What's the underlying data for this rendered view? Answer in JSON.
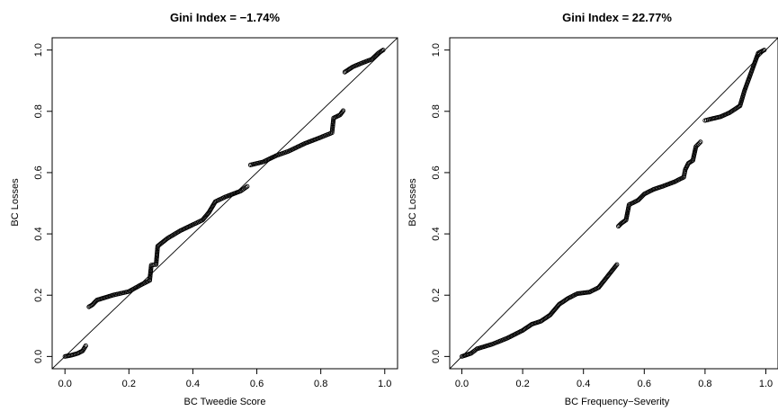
{
  "chart_data": [
    {
      "type": "scatter",
      "title": "Gini Index = −1.74%",
      "xlabel": "BC Tweedie Score",
      "ylabel": "BC Losses",
      "xlim": [
        0,
        1
      ],
      "ylim": [
        0,
        1
      ],
      "xticks": [
        "0.0",
        "0.2",
        "0.4",
        "0.6",
        "0.8",
        "1.0"
      ],
      "yticks": [
        "0.0",
        "0.2",
        "0.4",
        "0.6",
        "0.8",
        "1.0"
      ],
      "reference_line": "y = x",
      "grid": false,
      "segments": [
        [
          0.0,
          0.0
        ],
        [
          0.02,
          0.004
        ],
        [
          0.04,
          0.01
        ],
        [
          0.055,
          0.018
        ],
        [
          0.065,
          0.035
        ],
        [
          0.075,
          0.162
        ],
        [
          0.085,
          0.168
        ],
        [
          0.1,
          0.184
        ],
        [
          0.15,
          0.2
        ],
        [
          0.2,
          0.212
        ],
        [
          0.24,
          0.235
        ],
        [
          0.265,
          0.248
        ],
        [
          0.27,
          0.298
        ],
        [
          0.285,
          0.3
        ],
        [
          0.29,
          0.36
        ],
        [
          0.32,
          0.385
        ],
        [
          0.36,
          0.41
        ],
        [
          0.4,
          0.43
        ],
        [
          0.43,
          0.445
        ],
        [
          0.45,
          0.47
        ],
        [
          0.47,
          0.505
        ],
        [
          0.5,
          0.52
        ],
        [
          0.55,
          0.54
        ],
        [
          0.57,
          0.555
        ],
        [
          0.58,
          0.625
        ],
        [
          0.62,
          0.635
        ],
        [
          0.66,
          0.655
        ],
        [
          0.7,
          0.67
        ],
        [
          0.75,
          0.695
        ],
        [
          0.8,
          0.715
        ],
        [
          0.835,
          0.73
        ],
        [
          0.84,
          0.778
        ],
        [
          0.86,
          0.788
        ],
        [
          0.87,
          0.802
        ],
        [
          0.875,
          0.928
        ],
        [
          0.9,
          0.945
        ],
        [
          0.93,
          0.958
        ],
        [
          0.96,
          0.97
        ],
        [
          0.98,
          0.99
        ],
        [
          0.995,
          1.0
        ]
      ]
    },
    {
      "type": "scatter",
      "title": "Gini Index = 22.77%",
      "xlabel": "BC Frequency−Severity",
      "ylabel": "BC Losses",
      "xlim": [
        0,
        1
      ],
      "ylim": [
        0,
        1
      ],
      "xticks": [
        "0.0",
        "0.2",
        "0.4",
        "0.6",
        "0.8",
        "1.0"
      ],
      "yticks": [
        "0.0",
        "0.2",
        "0.4",
        "0.6",
        "0.8",
        "1.0"
      ],
      "reference_line": "y = x",
      "grid": false,
      "segments": [
        [
          0.0,
          0.0
        ],
        [
          0.03,
          0.01
        ],
        [
          0.05,
          0.025
        ],
        [
          0.1,
          0.04
        ],
        [
          0.15,
          0.06
        ],
        [
          0.2,
          0.085
        ],
        [
          0.23,
          0.105
        ],
        [
          0.26,
          0.115
        ],
        [
          0.29,
          0.135
        ],
        [
          0.32,
          0.17
        ],
        [
          0.35,
          0.19
        ],
        [
          0.38,
          0.205
        ],
        [
          0.42,
          0.21
        ],
        [
          0.45,
          0.225
        ],
        [
          0.47,
          0.25
        ],
        [
          0.49,
          0.275
        ],
        [
          0.51,
          0.3
        ],
        [
          0.515,
          0.425
        ],
        [
          0.525,
          0.435
        ],
        [
          0.54,
          0.445
        ],
        [
          0.55,
          0.495
        ],
        [
          0.58,
          0.51
        ],
        [
          0.6,
          0.53
        ],
        [
          0.63,
          0.545
        ],
        [
          0.66,
          0.555
        ],
        [
          0.7,
          0.57
        ],
        [
          0.73,
          0.585
        ],
        [
          0.735,
          0.61
        ],
        [
          0.745,
          0.63
        ],
        [
          0.76,
          0.64
        ],
        [
          0.77,
          0.685
        ],
        [
          0.785,
          0.7
        ],
        [
          0.8,
          0.77
        ],
        [
          0.82,
          0.775
        ],
        [
          0.85,
          0.782
        ],
        [
          0.88,
          0.795
        ],
        [
          0.9,
          0.808
        ],
        [
          0.915,
          0.818
        ],
        [
          0.93,
          0.868
        ],
        [
          0.975,
          0.99
        ],
        [
          0.995,
          1.0
        ]
      ]
    }
  ]
}
